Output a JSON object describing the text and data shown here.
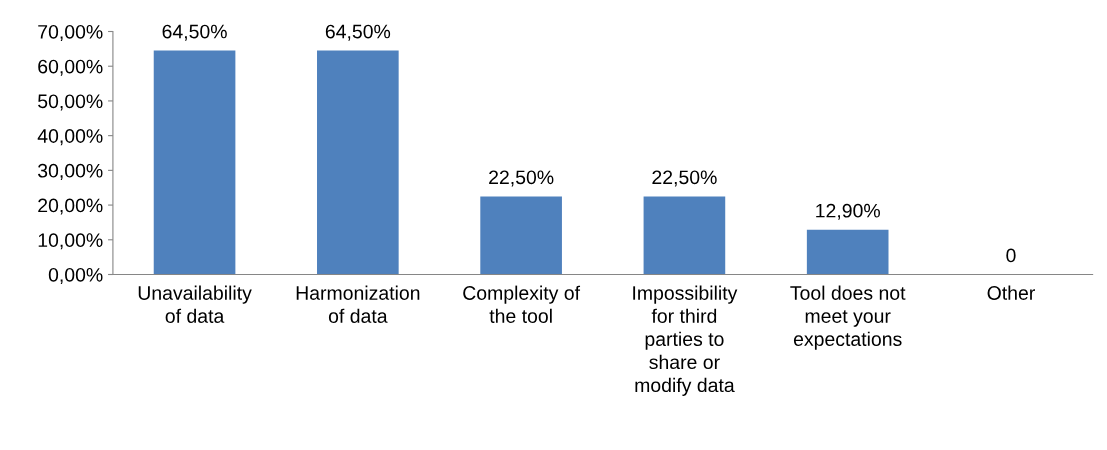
{
  "chart_data": {
    "type": "bar",
    "categories": [
      "Unavailability of data",
      "Harmonization of data",
      "Complexity of the tool",
      "Impossibility for third parties to share or modify data",
      "Tool does not meet your expectations",
      "Other"
    ],
    "values": [
      64.5,
      64.5,
      22.5,
      22.5,
      12.9,
      0
    ],
    "value_labels": [
      "64,50%",
      "64,50%",
      "22,50%",
      "22,50%",
      "12,90%",
      "0"
    ],
    "color": "#4f81bd",
    "ylim": [
      0,
      70
    ],
    "yticks": [
      {
        "value": 0,
        "label": "0,00%"
      },
      {
        "value": 10,
        "label": "10,00%"
      },
      {
        "value": 20,
        "label": "20,00%"
      },
      {
        "value": 30,
        "label": "30,00%"
      },
      {
        "value": 40,
        "label": "40,00%"
      },
      {
        "value": 50,
        "label": "50,00%"
      },
      {
        "value": 60,
        "label": "60,00%"
      },
      {
        "value": 70,
        "label": "70,00%"
      }
    ],
    "grid": false,
    "legend": false
  }
}
